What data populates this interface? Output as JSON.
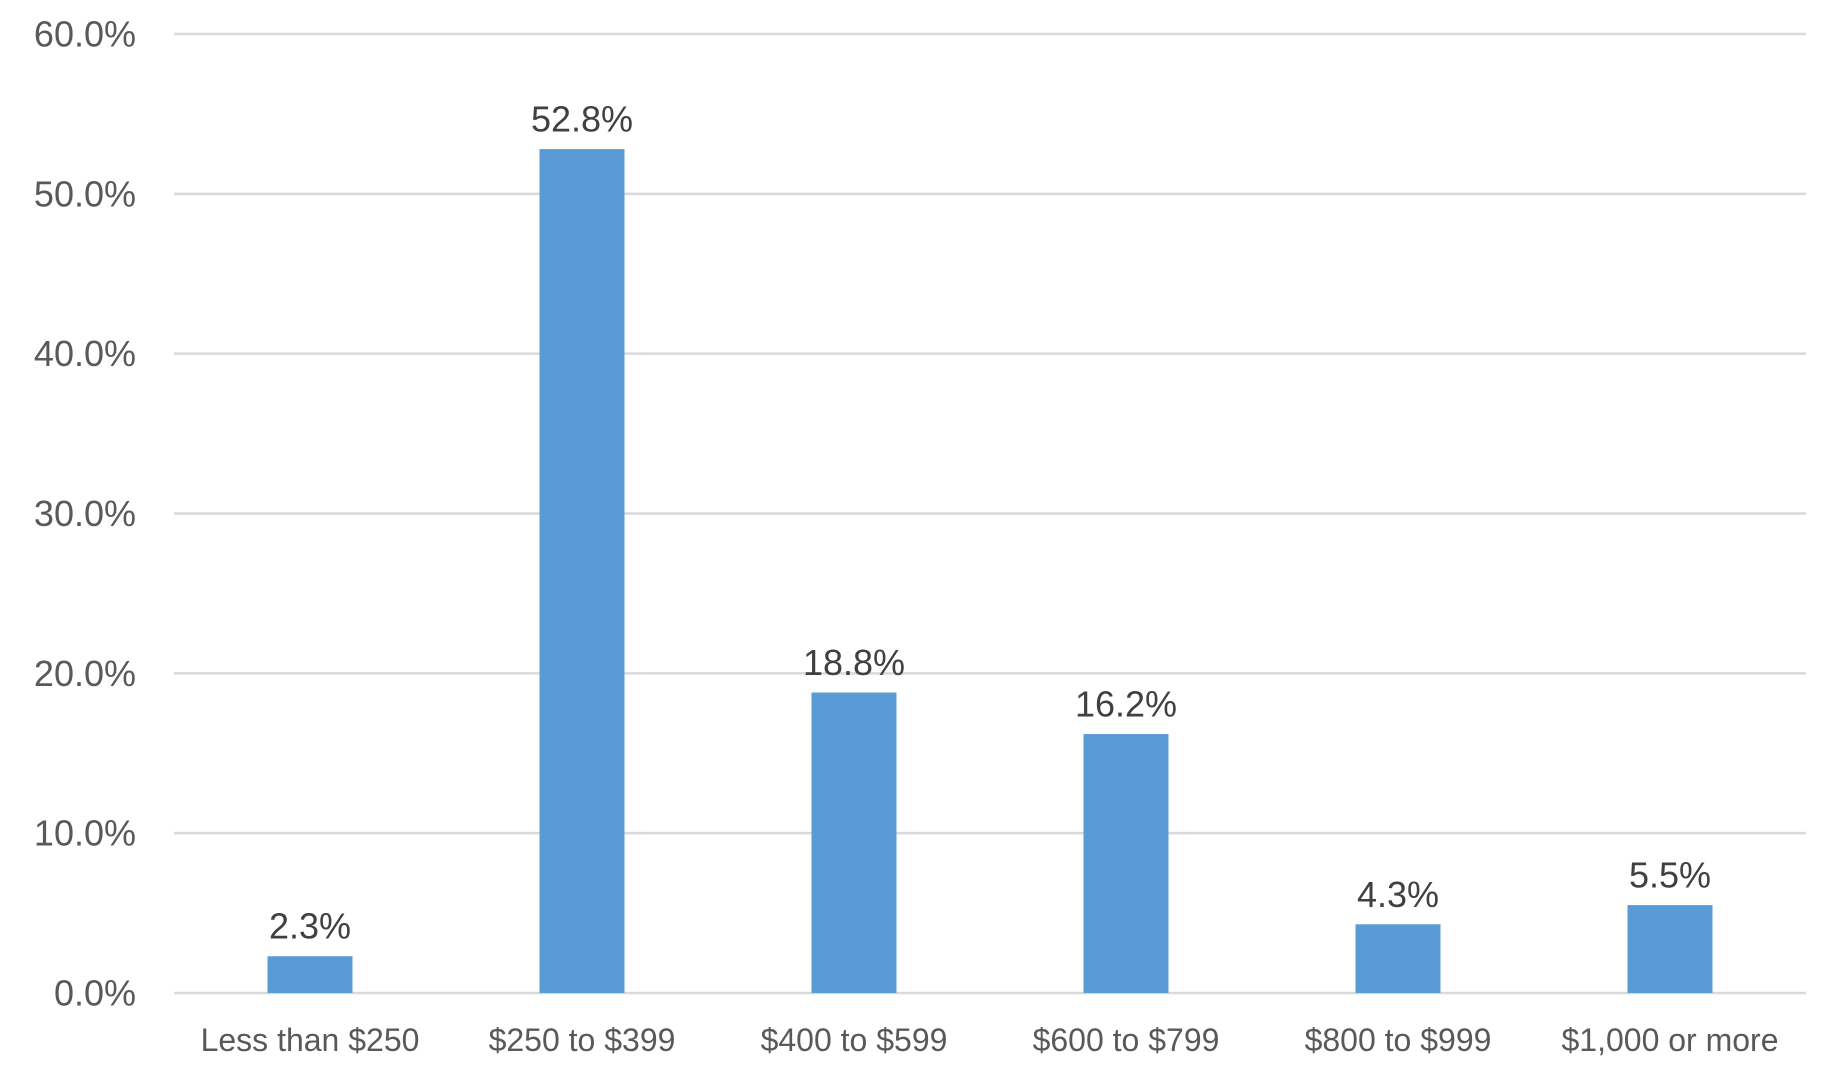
{
  "chart_data": {
    "type": "bar",
    "title": "",
    "xlabel": "",
    "ylabel": "",
    "categories": [
      "Less than $250",
      "$250 to $399",
      "$400 to $599",
      "$600 to $799",
      "$800 to $999",
      "$1,000 or more"
    ],
    "values": [
      2.3,
      52.8,
      18.8,
      16.2,
      4.3,
      5.5
    ],
    "data_labels": [
      "2.3%",
      "52.8%",
      "18.8%",
      "16.2%",
      "4.3%",
      "5.5%"
    ],
    "ylim": [
      0,
      60
    ],
    "yticks": [
      0,
      10,
      20,
      30,
      40,
      50,
      60
    ],
    "ytick_labels": [
      "0.0%",
      "10.0%",
      "20.0%",
      "30.0%",
      "40.0%",
      "50.0%",
      "60.0%"
    ],
    "grid": true,
    "legend": "none",
    "colors": {
      "bar": "#5b9bd5",
      "grid": "#d9d9d9",
      "tick_text": "#595959",
      "label_text": "#404040"
    }
  }
}
